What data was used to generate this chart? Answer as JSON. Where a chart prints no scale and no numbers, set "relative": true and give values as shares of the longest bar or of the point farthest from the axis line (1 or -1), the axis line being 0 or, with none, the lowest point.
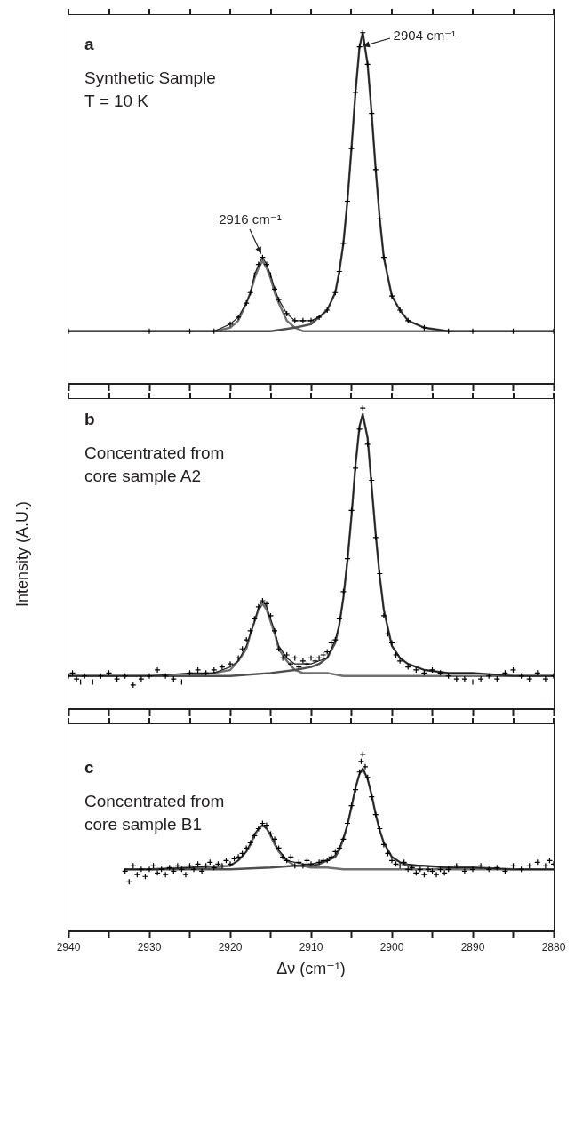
{
  "chart_data": [
    {
      "type": "line",
      "relative": true,
      "xlim": [
        2940,
        2880
      ],
      "xticks": [
        2940,
        {
          "value": 2935,
          "label": null
        },
        2930,
        {
          "value": 2925,
          "label": null
        },
        2920,
        {
          "value": 2915,
          "label": null
        },
        2910,
        {
          "value": 2905,
          "label": null
        },
        2900,
        {
          "value": 2895,
          "label": null
        },
        2890,
        {
          "value": 2885,
          "label": null
        },
        2880
      ],
      "tick_labels": false,
      "annotations": [
        "a",
        "Synthetic Sample",
        "T = 10 K",
        {
          "text": "2916 cm⁻¹",
          "x": 2916,
          "y": 0.36
        },
        {
          "text": "2904 cm⁻¹",
          "x": 2904,
          "y": 0.96
        }
      ],
      "series": [
        {
          "type": "scatter",
          "marker": "cross",
          "color": "#000000",
          "x": [
            2940,
            2930,
            2925,
            2922,
            2920,
            2919,
            2918,
            2917.5,
            2917,
            2916.5,
            2916,
            2915.5,
            2915,
            2914.5,
            2914,
            2913,
            2912,
            2911,
            2910,
            2909,
            2908,
            2907,
            2906.5,
            2906,
            2905.5,
            2905,
            2904.5,
            2904,
            2903.6,
            2903,
            2902.5,
            2902,
            2901.5,
            2901,
            2900,
            2899,
            2898,
            2896,
            2893,
            2890,
            2885,
            2880
          ],
          "values": [
            0.15,
            0.15,
            0.15,
            0.15,
            0.17,
            0.19,
            0.23,
            0.26,
            0.31,
            0.34,
            0.36,
            0.34,
            0.31,
            0.27,
            0.24,
            0.2,
            0.18,
            0.18,
            0.18,
            0.19,
            0.21,
            0.26,
            0.32,
            0.4,
            0.52,
            0.67,
            0.83,
            0.96,
            1,
            0.91,
            0.77,
            0.61,
            0.47,
            0.36,
            0.25,
            0.21,
            0.18,
            0.16,
            0.15,
            0.15,
            0.15,
            0.15
          ]
        },
        {
          "type": "line",
          "color": "#231f20",
          "x": [
            2940,
            2930,
            2925,
            2922,
            2920,
            2919,
            2918,
            2917.5,
            2917,
            2916.5,
            2916,
            2915.5,
            2915,
            2914.5,
            2914,
            2913,
            2912,
            2911,
            2910,
            2909,
            2908,
            2907,
            2906.5,
            2906,
            2905.5,
            2905,
            2904.5,
            2904,
            2903.6,
            2903,
            2902.5,
            2902,
            2901.5,
            2901,
            2900,
            2899,
            2898,
            2896,
            2893,
            2890,
            2885,
            2880
          ],
          "values": [
            0.15,
            0.15,
            0.15,
            0.15,
            0.17,
            0.19,
            0.23,
            0.26,
            0.31,
            0.34,
            0.36,
            0.34,
            0.31,
            0.27,
            0.24,
            0.2,
            0.18,
            0.18,
            0.18,
            0.19,
            0.21,
            0.26,
            0.32,
            0.4,
            0.52,
            0.67,
            0.83,
            0.96,
            1,
            0.91,
            0.77,
            0.61,
            0.47,
            0.36,
            0.25,
            0.21,
            0.18,
            0.16,
            0.15,
            0.15,
            0.15,
            0.15
          ]
        },
        {
          "type": "line",
          "color": "#505050",
          "x": [
            2940,
            2930,
            2920,
            2915,
            2912,
            2910,
            2909,
            2908,
            2907,
            2906.5,
            2906,
            2905.5,
            2905,
            2904.5,
            2904,
            2903.6,
            2903,
            2902.5,
            2902,
            2901.5,
            2901,
            2900,
            2899,
            2898,
            2896,
            2893,
            2890,
            2885,
            2880
          ],
          "values": [
            0.15,
            0.15,
            0.15,
            0.15,
            0.16,
            0.17,
            0.19,
            0.21,
            0.26,
            0.32,
            0.4,
            0.52,
            0.67,
            0.83,
            0.96,
            1,
            0.91,
            0.77,
            0.61,
            0.47,
            0.36,
            0.25,
            0.21,
            0.18,
            0.16,
            0.15,
            0.15,
            0.15,
            0.15
          ]
        },
        {
          "type": "line",
          "color": "#707070",
          "x": [
            2940,
            2930,
            2925,
            2922,
            2920,
            2919,
            2918,
            2917.5,
            2917,
            2916.5,
            2916,
            2915.5,
            2915,
            2914.5,
            2914,
            2913,
            2912,
            2911,
            2910,
            2908,
            2906,
            2903,
            2900,
            2895,
            2890,
            2880
          ],
          "values": [
            0.15,
            0.15,
            0.15,
            0.15,
            0.16,
            0.18,
            0.23,
            0.26,
            0.3,
            0.33,
            0.35,
            0.33,
            0.3,
            0.26,
            0.23,
            0.18,
            0.16,
            0.15,
            0.15,
            0.15,
            0.15,
            0.15,
            0.15,
            0.15,
            0.15,
            0.15
          ]
        }
      ]
    },
    {
      "type": "line",
      "relative": true,
      "xlim": [
        2940,
        2880
      ],
      "xticks": [
        2940,
        {
          "value": 2935,
          "label": null
        },
        2930,
        {
          "value": 2925,
          "label": null
        },
        2920,
        {
          "value": 2915,
          "label": null
        },
        2910,
        {
          "value": 2905,
          "label": null
        },
        2900,
        {
          "value": 2895,
          "label": null
        },
        2890,
        {
          "value": 2885,
          "label": null
        },
        2880
      ],
      "tick_labels": false,
      "ylabel": "Intensity (A.U.)",
      "annotations": [
        "b",
        "Concentrated from",
        "core sample A2"
      ],
      "series": [
        {
          "type": "scatter",
          "marker": "cross",
          "color": "#000000",
          "x": [
            2940,
            2939.5,
            2939,
            2938.5,
            2938,
            2937,
            2936,
            2935,
            2934,
            2933,
            2932,
            2931,
            2930,
            2929,
            2928,
            2927,
            2926,
            2925,
            2924,
            2923,
            2922,
            2921,
            2920,
            2919,
            2918.5,
            2918,
            2917.5,
            2917,
            2916.5,
            2916,
            2915.5,
            2915,
            2914.5,
            2914,
            2913.5,
            2913,
            2912.5,
            2912,
            2911.5,
            2911,
            2910.5,
            2910,
            2909.5,
            2909,
            2908.5,
            2908,
            2907.5,
            2907,
            2906.5,
            2906,
            2905.5,
            2905,
            2904.5,
            2904,
            2903.6,
            2903,
            2902.5,
            2902,
            2901.5,
            2901,
            2900.5,
            2900,
            2899.5,
            2899,
            2898,
            2897,
            2896,
            2895,
            2894,
            2893,
            2892,
            2891,
            2890,
            2889,
            2888,
            2887,
            2886,
            2885,
            2884,
            2883,
            2882,
            2881,
            2880
          ],
          "values": [
            0.11,
            0.12,
            0.1,
            0.09,
            0.11,
            0.09,
            0.11,
            0.12,
            0.1,
            0.11,
            0.08,
            0.1,
            0.11,
            0.13,
            0.11,
            0.1,
            0.09,
            0.12,
            0.13,
            0.12,
            0.13,
            0.14,
            0.15,
            0.17,
            0.2,
            0.23,
            0.26,
            0.3,
            0.34,
            0.36,
            0.35,
            0.31,
            0.26,
            0.2,
            0.17,
            0.18,
            0.15,
            0.17,
            0.14,
            0.16,
            0.15,
            0.17,
            0.16,
            0.17,
            0.18,
            0.19,
            0.22,
            0.23,
            0.3,
            0.39,
            0.5,
            0.66,
            0.8,
            0.93,
            1,
            0.88,
            0.76,
            0.57,
            0.45,
            0.31,
            0.25,
            0.22,
            0.18,
            0.16,
            0.14,
            0.13,
            0.12,
            0.13,
            0.12,
            0.11,
            0.1,
            0.1,
            0.09,
            0.1,
            0.11,
            0.1,
            0.12,
            0.13,
            0.11,
            0.1,
            0.12,
            0.1,
            0.11
          ]
        },
        {
          "type": "line",
          "color": "#231f20",
          "x": [
            2940,
            2930,
            2925,
            2922,
            2920,
            2919,
            2918,
            2917.5,
            2917,
            2916.5,
            2916,
            2915.5,
            2915,
            2914.5,
            2914,
            2913,
            2912,
            2911,
            2910,
            2909,
            2908,
            2907,
            2906.5,
            2906,
            2905.5,
            2905,
            2904.5,
            2904,
            2903.6,
            2903,
            2902.5,
            2902,
            2901.5,
            2901,
            2900,
            2899,
            2898,
            2896,
            2893,
            2890,
            2885,
            2880
          ],
          "values": [
            0.11,
            0.11,
            0.12,
            0.12,
            0.14,
            0.16,
            0.21,
            0.25,
            0.29,
            0.34,
            0.36,
            0.34,
            0.3,
            0.26,
            0.21,
            0.17,
            0.15,
            0.15,
            0.15,
            0.16,
            0.17,
            0.23,
            0.28,
            0.37,
            0.5,
            0.64,
            0.81,
            0.94,
            0.98,
            0.9,
            0.74,
            0.58,
            0.44,
            0.33,
            0.21,
            0.17,
            0.15,
            0.13,
            0.12,
            0.12,
            0.11,
            0.11
          ]
        },
        {
          "type": "line",
          "color": "#505050",
          "x": [
            2940,
            2930,
            2920,
            2915,
            2912,
            2910,
            2909,
            2908,
            2907,
            2906.5,
            2906,
            2905.5,
            2905,
            2904.5,
            2904,
            2903.6,
            2903,
            2902.5,
            2902,
            2901.5,
            2901,
            2900,
            2899,
            2898,
            2896,
            2893,
            2890,
            2885,
            2880
          ],
          "values": [
            0.11,
            0.11,
            0.11,
            0.12,
            0.13,
            0.14,
            0.15,
            0.17,
            0.22,
            0.28,
            0.37,
            0.49,
            0.64,
            0.81,
            0.94,
            0.98,
            0.9,
            0.74,
            0.58,
            0.44,
            0.33,
            0.21,
            0.17,
            0.15,
            0.13,
            0.12,
            0.12,
            0.11,
            0.11
          ]
        },
        {
          "type": "line",
          "color": "#707070",
          "x": [
            2940,
            2930,
            2925,
            2922,
            2920,
            2919,
            2918,
            2917.5,
            2917,
            2916.5,
            2916,
            2915.5,
            2915,
            2914.5,
            2914,
            2913,
            2912,
            2911,
            2910,
            2908,
            2906,
            2903,
            2900,
            2895,
            2890,
            2880
          ],
          "values": [
            0.11,
            0.11,
            0.11,
            0.12,
            0.13,
            0.16,
            0.2,
            0.25,
            0.29,
            0.33,
            0.35,
            0.33,
            0.29,
            0.25,
            0.2,
            0.16,
            0.13,
            0.12,
            0.12,
            0.12,
            0.11,
            0.11,
            0.11,
            0.11,
            0.11,
            0.11
          ]
        }
      ]
    },
    {
      "type": "line",
      "relative": true,
      "xlim": [
        2940,
        2880
      ],
      "xticks": [
        2940,
        {
          "value": 2935,
          "label": null
        },
        2930,
        {
          "value": 2925,
          "label": null
        },
        2920,
        {
          "value": 2915,
          "label": null
        },
        2910,
        {
          "value": 2905,
          "label": null
        },
        2900,
        {
          "value": 2895,
          "label": null
        },
        2890,
        {
          "value": 2885,
          "label": null
        },
        2880
      ],
      "tick_labels": "x",
      "xlabel": "Δν (cm⁻¹)",
      "annotations": [
        "c",
        "Concentrated from",
        "core sample B1"
      ],
      "series": [
        {
          "type": "scatter",
          "marker": "cross",
          "color": "#000000",
          "x": [
            2933,
            2932.5,
            2932,
            2931.5,
            2931,
            2930.5,
            2930,
            2929.5,
            2929,
            2928.5,
            2928,
            2927.5,
            2927,
            2926.5,
            2926,
            2925.5,
            2925,
            2924.5,
            2924,
            2923.5,
            2923,
            2922.5,
            2922,
            2921.5,
            2921,
            2920.5,
            2920,
            2919.5,
            2919,
            2918.5,
            2918,
            2917.5,
            2917,
            2916.5,
            2916,
            2915.5,
            2915,
            2914.5,
            2914,
            2913.5,
            2913,
            2912.5,
            2912,
            2911.5,
            2911,
            2910.5,
            2910,
            2909.5,
            2909,
            2908.5,
            2908,
            2907.5,
            2907,
            2906.5,
            2906,
            2905.5,
            2905,
            2904.5,
            2904,
            2903.8,
            2903.6,
            2903.3,
            2903,
            2902.5,
            2902,
            2901.5,
            2901,
            2900.5,
            2900,
            2899.5,
            2899,
            2898.5,
            2898,
            2897.5,
            2897,
            2896.5,
            2896,
            2895.5,
            2895,
            2894.5,
            2894,
            2893.5,
            2893,
            2892,
            2891,
            2890,
            2889,
            2888,
            2887,
            2886,
            2885,
            2884,
            2883,
            2882,
            2881,
            2880.5,
            2880
          ],
          "values": [
            0.34,
            0.28,
            0.37,
            0.32,
            0.35,
            0.31,
            0.35,
            0.37,
            0.33,
            0.35,
            0.32,
            0.36,
            0.34,
            0.37,
            0.35,
            0.32,
            0.37,
            0.35,
            0.38,
            0.34,
            0.37,
            0.39,
            0.36,
            0.38,
            0.37,
            0.4,
            0.38,
            0.41,
            0.42,
            0.44,
            0.47,
            0.5,
            0.54,
            0.58,
            0.61,
            0.6,
            0.55,
            0.52,
            0.47,
            0.42,
            0.4,
            0.42,
            0.37,
            0.39,
            0.37,
            0.4,
            0.38,
            0.37,
            0.39,
            0.4,
            0.4,
            0.42,
            0.45,
            0.47,
            0.52,
            0.61,
            0.71,
            0.8,
            0.9,
            0.96,
            1,
            0.93,
            0.87,
            0.76,
            0.66,
            0.58,
            0.49,
            0.44,
            0.4,
            0.38,
            0.37,
            0.39,
            0.35,
            0.36,
            0.33,
            0.35,
            0.32,
            0.35,
            0.34,
            0.32,
            0.35,
            0.33,
            0.35,
            0.37,
            0.34,
            0.35,
            0.37,
            0.35,
            0.36,
            0.34,
            0.37,
            0.35,
            0.37,
            0.39,
            0.37,
            0.4,
            0.38
          ]
        },
        {
          "type": "line",
          "color": "#231f20",
          "x": [
            2933,
            2930,
            2925,
            2922,
            2920,
            2919,
            2918,
            2917.5,
            2917,
            2916.5,
            2916,
            2915.5,
            2915,
            2914.5,
            2914,
            2913,
            2912,
            2911,
            2910,
            2909,
            2908,
            2907,
            2906.5,
            2906,
            2905.5,
            2905,
            2904.5,
            2904,
            2903.6,
            2903,
            2902.5,
            2902,
            2901.5,
            2901,
            2900,
            2899,
            2898,
            2896,
            2893,
            2890,
            2885,
            2880
          ],
          "values": [
            0.35,
            0.35,
            0.36,
            0.37,
            0.37,
            0.4,
            0.45,
            0.5,
            0.55,
            0.58,
            0.6,
            0.58,
            0.55,
            0.5,
            0.46,
            0.4,
            0.39,
            0.38,
            0.38,
            0.39,
            0.4,
            0.43,
            0.47,
            0.53,
            0.6,
            0.71,
            0.81,
            0.89,
            0.92,
            0.86,
            0.77,
            0.66,
            0.57,
            0.5,
            0.42,
            0.39,
            0.38,
            0.37,
            0.36,
            0.36,
            0.35,
            0.35
          ]
        },
        {
          "type": "line",
          "color": "#505050",
          "x": [
            2933,
            2925,
            2920,
            2915,
            2912,
            2910,
            2909,
            2908,
            2907,
            2906.5,
            2906,
            2905.5,
            2905,
            2904.5,
            2904,
            2903.6,
            2903,
            2902.5,
            2902,
            2901.5,
            2901,
            2900,
            2899,
            2898,
            2896,
            2893,
            2890,
            2885,
            2880
          ],
          "values": [
            0.35,
            0.35,
            0.35,
            0.36,
            0.37,
            0.37,
            0.38,
            0.4,
            0.42,
            0.46,
            0.52,
            0.6,
            0.7,
            0.81,
            0.89,
            0.92,
            0.86,
            0.77,
            0.66,
            0.57,
            0.5,
            0.42,
            0.39,
            0.37,
            0.37,
            0.36,
            0.36,
            0.35,
            0.35
          ]
        },
        {
          "type": "line",
          "color": "#707070",
          "x": [
            2933,
            2930,
            2925,
            2922,
            2920,
            2919,
            2918,
            2917.5,
            2917,
            2916.5,
            2916,
            2915.5,
            2915,
            2914.5,
            2914,
            2913,
            2912,
            2911,
            2910,
            2908,
            2906,
            2903,
            2900,
            2895,
            2890,
            2880
          ],
          "values": [
            0.35,
            0.35,
            0.36,
            0.36,
            0.37,
            0.4,
            0.45,
            0.49,
            0.54,
            0.58,
            0.6,
            0.58,
            0.54,
            0.49,
            0.45,
            0.4,
            0.37,
            0.37,
            0.36,
            0.36,
            0.35,
            0.35,
            0.35,
            0.35,
            0.35,
            0.35
          ]
        }
      ]
    }
  ]
}
